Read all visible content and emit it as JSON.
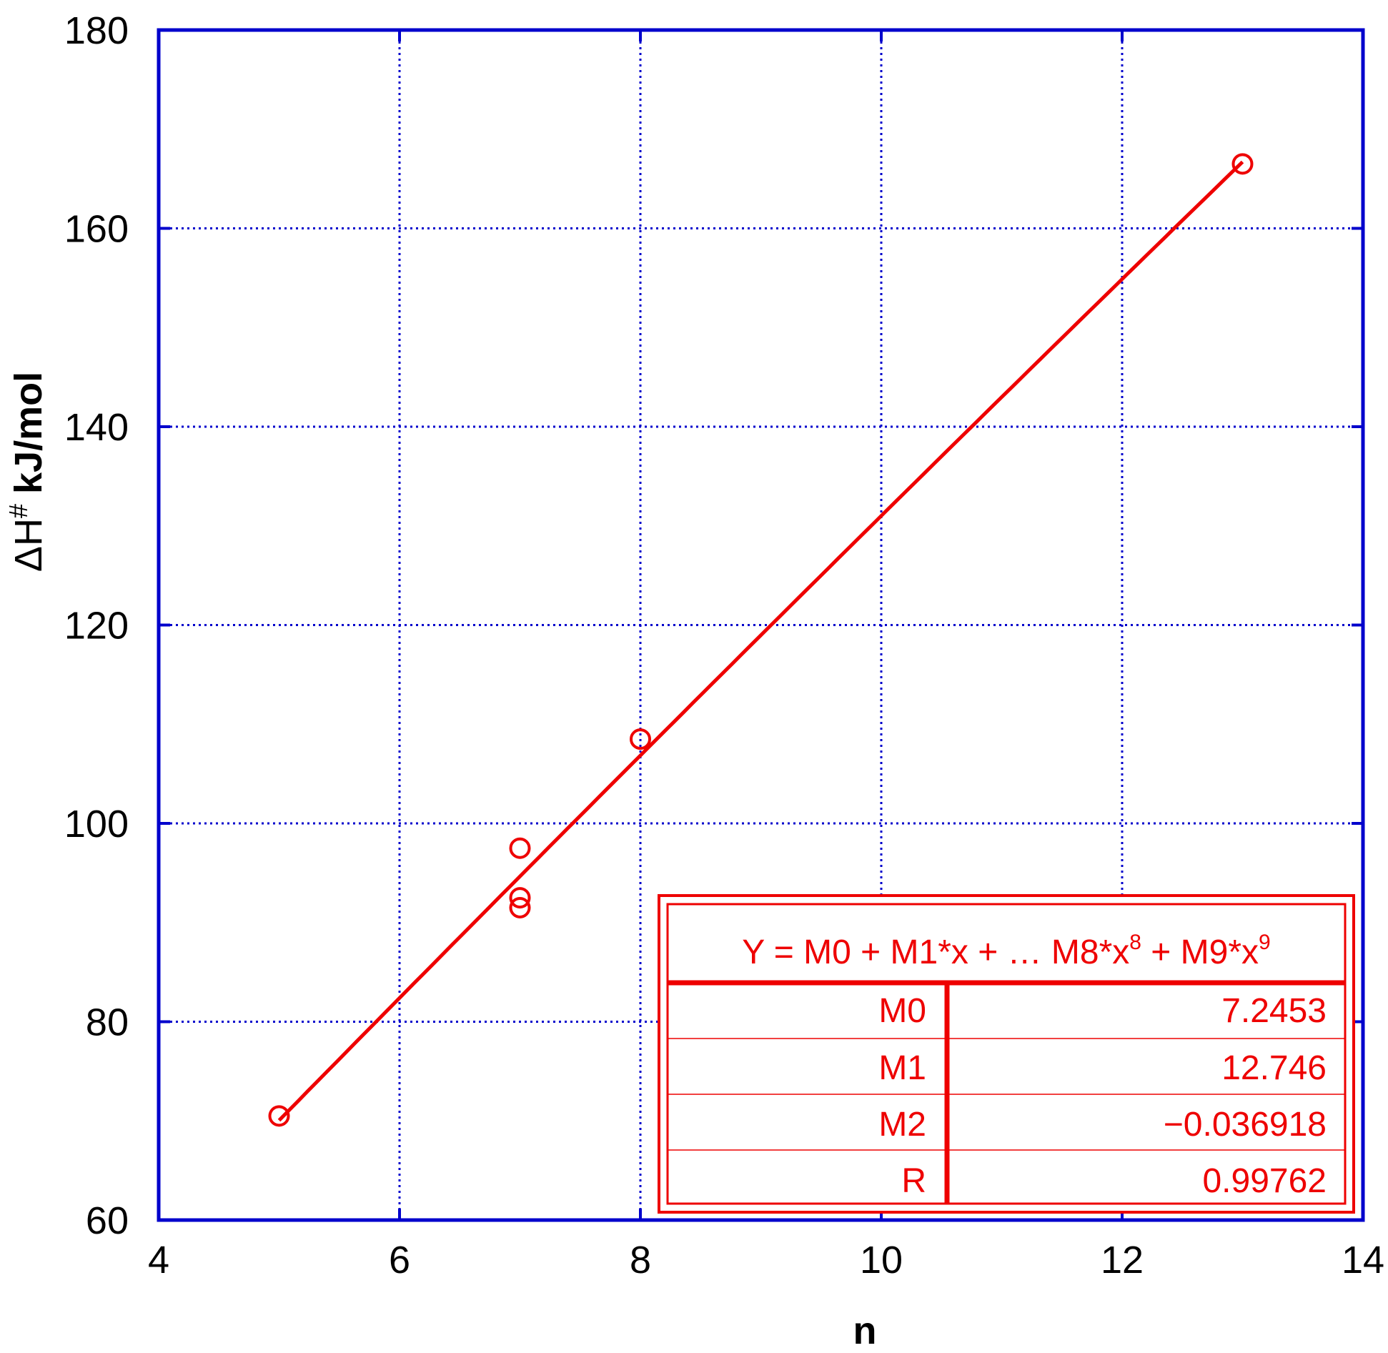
{
  "chart_data": {
    "type": "scatter",
    "xlabel": "n",
    "ylabel": {
      "main": "ΔH",
      "superscript": "#",
      "unit": "kJ/mol"
    },
    "xlim": [
      4,
      14
    ],
    "ylim": [
      60,
      180
    ],
    "x_ticks": [
      "4",
      "6",
      "8",
      "10",
      "12",
      "14"
    ],
    "y_ticks": [
      "60",
      "80",
      "100",
      "120",
      "140",
      "160",
      "180"
    ],
    "grid": true,
    "colors": {
      "axes": "#0000cc",
      "grid": "#0000cc",
      "series": "#ee0000"
    },
    "series": [
      {
        "marker": "open-circle",
        "points": [
          {
            "x": 5,
            "y": 70.5
          },
          {
            "x": 7,
            "y": 97.5
          },
          {
            "x": 7,
            "y": 92.5
          },
          {
            "x": 7,
            "y": 91.5
          },
          {
            "x": 8,
            "y": 108.5
          },
          {
            "x": 13,
            "y": 166.5
          }
        ]
      }
    ],
    "fit": {
      "equation": {
        "parts": [
          "Y = M0 + M1*x + … M8*x",
          "8",
          " + M9*x",
          "9"
        ]
      },
      "coefficients": [
        {
          "name": "M0",
          "value": "7.2453"
        },
        {
          "name": "M1",
          "value": "12.746"
        },
        {
          "name": "M2",
          "value": "−0.036918"
        },
        {
          "name": "R",
          "value": "0.99762"
        }
      ],
      "params": {
        "m0": 7.2453,
        "m1": 12.746,
        "m2": -0.036918
      },
      "x_range": [
        5,
        13
      ]
    }
  }
}
